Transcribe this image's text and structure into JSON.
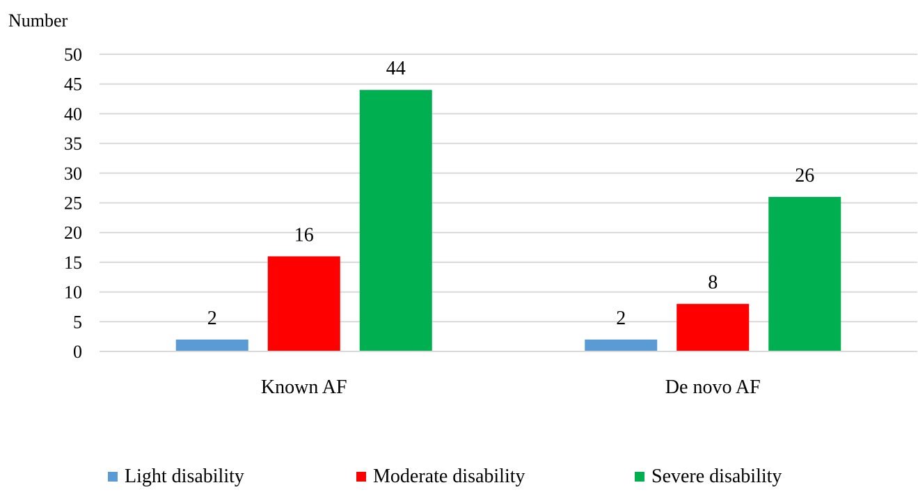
{
  "chart_data": {
    "type": "bar",
    "title": "",
    "xlabel": "",
    "ylabel": "Number",
    "ylim": [
      0,
      50
    ],
    "yticks": [
      0,
      5,
      10,
      15,
      20,
      25,
      30,
      35,
      40,
      45,
      50
    ],
    "grid": true,
    "legend_position": "bottom",
    "categories": [
      "Known AF",
      "De novo AF"
    ],
    "series": [
      {
        "name": "Light disability",
        "color": "#5b9bd5",
        "values": [
          2,
          2
        ]
      },
      {
        "name": "Moderate disability",
        "color": "#ff0000",
        "values": [
          16,
          8
        ]
      },
      {
        "name": "Severe disability",
        "color": "#00b050",
        "values": [
          44,
          26
        ]
      }
    ]
  }
}
